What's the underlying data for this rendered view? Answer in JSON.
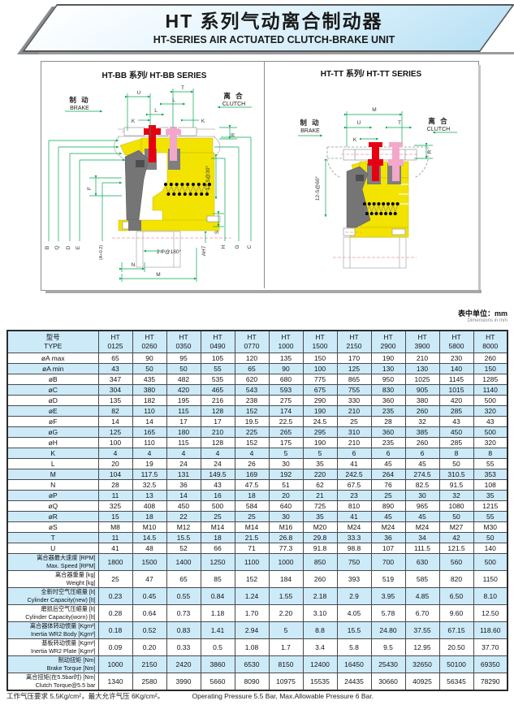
{
  "header": {
    "title_cn": "HT 系列气动离合制动器",
    "title_en": "HT-SERIES AIR ACTUATED CLUTCH-BRAKE UNIT"
  },
  "drawings": {
    "left": {
      "title": "HT-BB 系列/ HT-BB SERIES",
      "brake_cn": "制 动",
      "brake_en": "BRAKE",
      "clutch_cn": "离 合",
      "clutch_en": "CLUTCH",
      "dims": {
        "U": "U",
        "T": "T",
        "L": "L",
        "K": "K",
        "R": "R",
        "S12": "12-S@30°",
        "F": "F",
        "B": "B",
        "Q": "Q",
        "D": "D",
        "E": "E",
        "A02": "(A+0.2)",
        "P2": "2-P@180°",
        "N": "N",
        "M": "M",
        "AH7": "AH7",
        "H": "H",
        "S": "S",
        "G": "G",
        "C": "C"
      }
    },
    "right": {
      "title": "HT-TT 系列/ HT-TT SERIES",
      "brake_cn": "制 动",
      "brake_en": "BRAKE",
      "clutch_cn": "离 合",
      "clutch_en": "CLUTCH",
      "dims": {
        "M": "M",
        "U": "U",
        "T": "T",
        "K": "K",
        "R": "R",
        "S12": "12-S@60°"
      }
    }
  },
  "units_note": {
    "cn": "表中单位：mm",
    "en": "Dimensions in mm"
  },
  "table": {
    "header": {
      "label_cn": "型号",
      "label_en": "TYPE",
      "model_prefix": "HT",
      "models": [
        "0125",
        "0260",
        "0350",
        "0490",
        "0770",
        "1000",
        "1500",
        "2150",
        "2900",
        "3900",
        "5800",
        "8000"
      ]
    },
    "rows": [
      {
        "label": "øA max",
        "values": [
          "65",
          "90",
          "95",
          "105",
          "120",
          "135",
          "150",
          "170",
          "190",
          "210",
          "230",
          "260"
        ]
      },
      {
        "label": "øA min",
        "values": [
          "43",
          "50",
          "50",
          "55",
          "65",
          "90",
          "100",
          "125",
          "130",
          "130",
          "140",
          "150"
        ]
      },
      {
        "label": "øB",
        "values": [
          "347",
          "435",
          "482",
          "535",
          "620",
          "680",
          "775",
          "865",
          "950",
          "1025",
          "1145",
          "1285"
        ]
      },
      {
        "label": "øC",
        "values": [
          "304",
          "380",
          "420",
          "465",
          "543",
          "593",
          "675",
          "755",
          "830",
          "905",
          "1015",
          "1140"
        ]
      },
      {
        "label": "øD",
        "values": [
          "135",
          "182",
          "195",
          "216",
          "238",
          "275",
          "290",
          "330",
          "360",
          "380",
          "420",
          "500"
        ]
      },
      {
        "label": "øE",
        "values": [
          "82",
          "110",
          "115",
          "128",
          "152",
          "174",
          "190",
          "210",
          "235",
          "260",
          "285",
          "320"
        ]
      },
      {
        "label": "øF",
        "values": [
          "14",
          "14",
          "17",
          "17",
          "19.5",
          "22.5",
          "24.5",
          "25",
          "28",
          "32",
          "43",
          "43"
        ]
      },
      {
        "label": "øG",
        "values": [
          "125",
          "165",
          "180",
          "210",
          "225",
          "265",
          "295",
          "310",
          "360",
          "385",
          "450",
          "500"
        ]
      },
      {
        "label": "øH",
        "values": [
          "100",
          "110",
          "115",
          "128",
          "152",
          "175",
          "190",
          "210",
          "235",
          "260",
          "285",
          "320"
        ]
      },
      {
        "label": "K",
        "values": [
          "4",
          "4",
          "4",
          "4",
          "4",
          "5",
          "5",
          "6",
          "6",
          "6",
          "8",
          "8"
        ]
      },
      {
        "label": "L",
        "values": [
          "20",
          "19",
          "24",
          "24",
          "26",
          "30",
          "35",
          "41",
          "45",
          "45",
          "50",
          "55"
        ]
      },
      {
        "label": "M",
        "values": [
          "104",
          "117.5",
          "131",
          "149.5",
          "169",
          "192",
          "220",
          "242.5",
          "264",
          "274.5",
          "310.5",
          "353"
        ]
      },
      {
        "label": "N",
        "values": [
          "28",
          "32.5",
          "36",
          "43",
          "47.5",
          "51",
          "62",
          "67.5",
          "76",
          "82.5",
          "91.5",
          "108"
        ]
      },
      {
        "label": "øP",
        "values": [
          "11",
          "13",
          "14",
          "16",
          "18",
          "20",
          "21",
          "23",
          "25",
          "30",
          "32",
          "35"
        ]
      },
      {
        "label": "øQ",
        "values": [
          "325",
          "408",
          "450",
          "500",
          "584",
          "640",
          "725",
          "810",
          "890",
          "965",
          "1080",
          "1215"
        ]
      },
      {
        "label": "øR",
        "values": [
          "15",
          "18",
          "22",
          "25",
          "25",
          "30",
          "35",
          "41",
          "45",
          "45",
          "50",
          "55"
        ]
      },
      {
        "label": "øS",
        "values": [
          "M8",
          "M10",
          "M12",
          "M14",
          "M14",
          "M16",
          "M20",
          "M24",
          "M24",
          "M24",
          "M27",
          "M30"
        ]
      },
      {
        "label": "T",
        "values": [
          "11",
          "14.5",
          "15.5",
          "18",
          "21.5",
          "26.8",
          "29.8",
          "33.3",
          "36",
          "34",
          "42",
          "50"
        ]
      },
      {
        "label": "U",
        "values": [
          "41",
          "48",
          "52",
          "66",
          "71",
          "77.3",
          "91.8",
          "98.8",
          "107",
          "111.5",
          "121.5",
          "140"
        ]
      },
      {
        "label_cn": "离合器最大速度 [RPM]",
        "label_en": "Max. Speed [RPM]",
        "values": [
          "1800",
          "1500",
          "1400",
          "1250",
          "1100",
          "1000",
          "850",
          "750",
          "700",
          "630",
          "560",
          "500"
        ]
      },
      {
        "label_cn": "离合器重量 [kg]",
        "label_en": "Weight [kg]",
        "values": [
          "25",
          "47",
          "65",
          "85",
          "152",
          "184",
          "260",
          "393",
          "519",
          "585",
          "820",
          "1150"
        ]
      },
      {
        "label_cn": "全新时空气压缩量 [lt]",
        "label_en": "Cylinder Capacity(new) [lt]",
        "values": [
          "0.23",
          "0.45",
          "0.55",
          "0.84",
          "1.24",
          "1.55",
          "2.18",
          "2.9",
          "3.95",
          "4.85",
          "6.50",
          "8.10"
        ]
      },
      {
        "label_cn": "磨损后空气压缩量 [lt]",
        "label_en": "Cylinder Capacity(worn) [lt]",
        "values": [
          "0.28",
          "0.64",
          "0.73",
          "1.18",
          "1.70",
          "2.20",
          "3.10",
          "4.05",
          "5.78",
          "6.70",
          "9.60",
          "12.50"
        ]
      },
      {
        "label_cn": "离合器体转动惯量 [Kgm²]",
        "label_en": "Inertia WR2 Body [Kgm²]",
        "values": [
          "0.18",
          "0.52",
          "0.83",
          "1.41",
          "2.94",
          "5",
          "8.8",
          "15.5",
          "24.80",
          "37.55",
          "67.15",
          "118.60"
        ]
      },
      {
        "label_cn": "基板转动惯量 [Kgm²]",
        "label_en": "Inertia WR2 Plate [Kgm²]",
        "values": [
          "0.09",
          "0.20",
          "0.33",
          "0.5",
          "1.08",
          "1.7",
          "3.4",
          "5.8",
          "9.5",
          "12.95",
          "20.50",
          "37.70"
        ]
      },
      {
        "label_cn": "制动扭矩 [Nm]",
        "label_en": "Brake Torque [Nm]",
        "values": [
          "1000",
          "2150",
          "2420",
          "3860",
          "6530",
          "8150",
          "12400",
          "16450",
          "25430",
          "32650",
          "50100",
          "69350"
        ]
      },
      {
        "label_cn": "离合扭矩(在5.5bar时) [Nm]",
        "label_en": "Clutch Torque@5.5 bar",
        "values": [
          "1340",
          "2580",
          "3990",
          "5660",
          "8090",
          "10975",
          "15535",
          "24435",
          "30660",
          "40925",
          "56345",
          "78290"
        ]
      }
    ]
  },
  "footer": {
    "cn": "工作气压要求 5.5Kg/cm²，最大允许气压 6Kg/cm²。",
    "en": "Operating Pressure 5.5 Bar, Max.Allowable Pressure 6 Bar."
  }
}
